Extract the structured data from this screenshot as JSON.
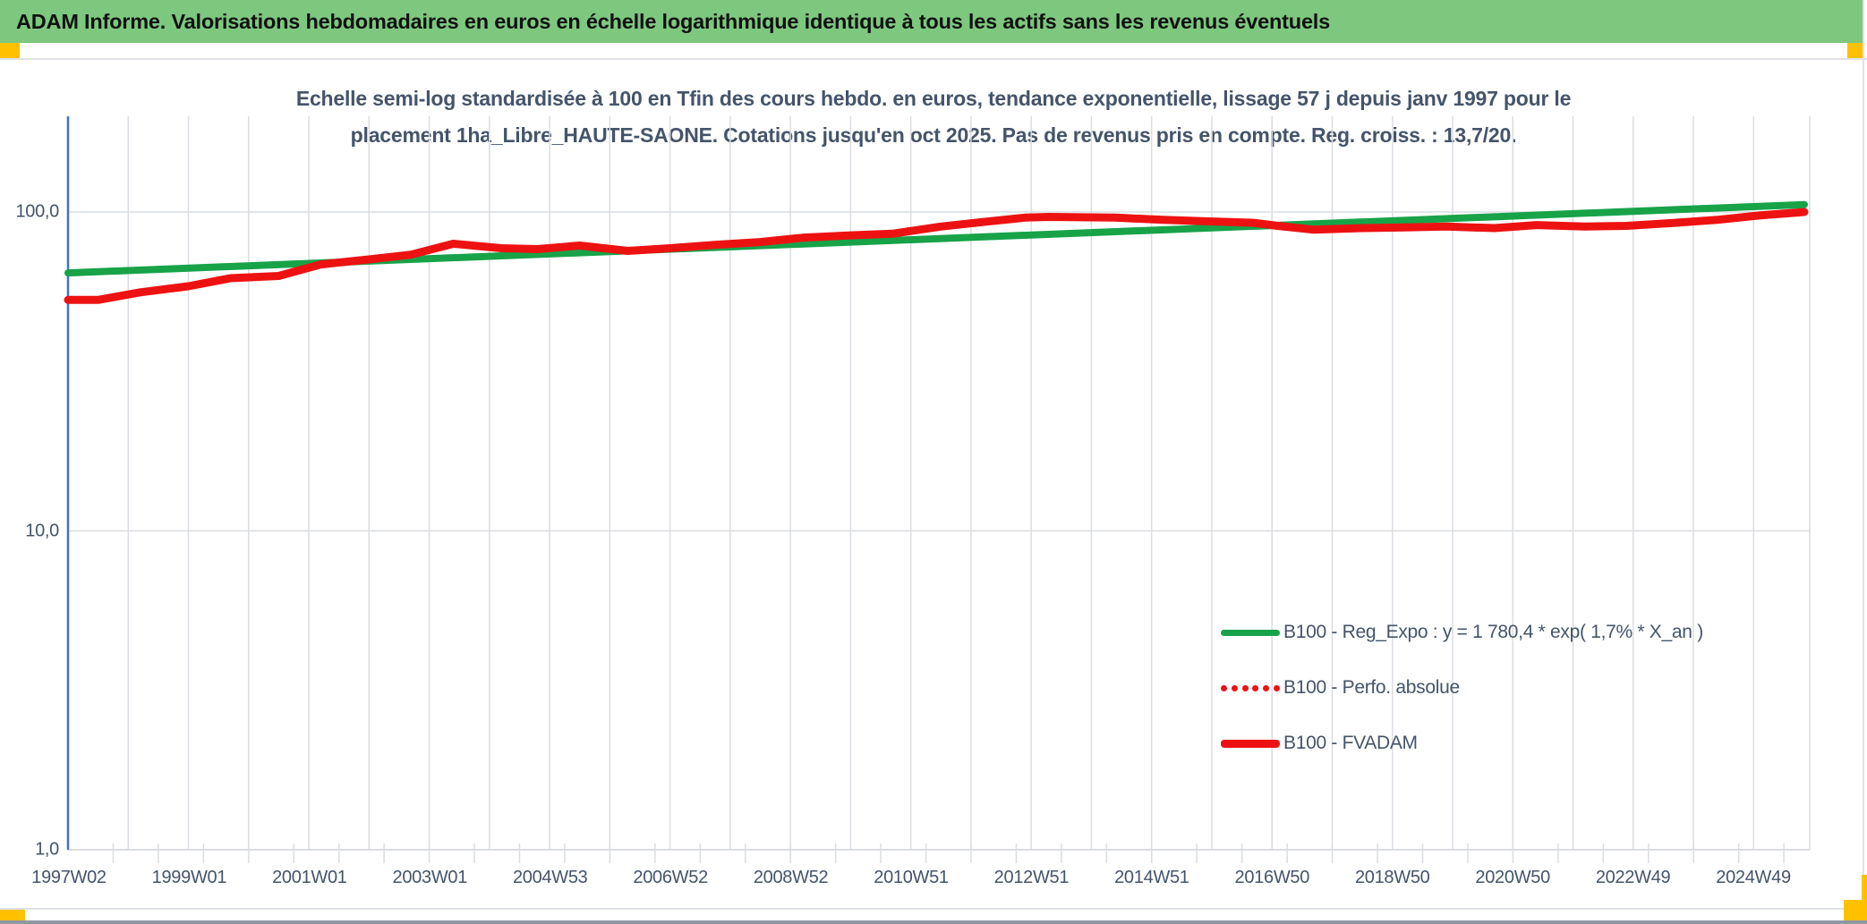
{
  "app": {
    "title": "ADAM Informe. Valorisations hebdomadaires en euros en échelle logarithmique identique à tous les actifs sans les revenus éventuels"
  },
  "chart": {
    "title_line1": "Echelle semi-log standardisée à 100 en Tfin des cours hebdo. en euros, tendance exponentielle, lissage 57 j depuis janv 1997 pour le",
    "title_line2": "placement 1ha_Libre_HAUTE-SAONE. Cotations jusqu'en oct 2025. Pas de revenus pris en compte. Reg. croiss. : 13,7/20."
  },
  "colors": {
    "header_bg": "#7dc87e",
    "accent_orange": "#ffc000",
    "series_green": "#18a349",
    "series_red": "#ed1212",
    "text_dark": "#44546a",
    "gridline": "#dadde2",
    "axis_blue": "#4472c4"
  },
  "chart_data": {
    "type": "line",
    "y_scale": "log10",
    "title": "Echelle semi-log standardisée à 100 en Tfin des cours hebdo. en euros, tendance exponentielle, lissage 57 j depuis janv 1997 pour le placement 1ha_Libre_HAUTE-SAONE. Cotations jusqu'en oct 2025. Pas de revenus pris en compte. Reg. croiss. : 13,7/20.",
    "x_unit": "years_since_1997W02",
    "x_max": 28.85,
    "ylim": [
      1,
      200
    ],
    "grid": "on",
    "legend_position": "inside-right-bottom",
    "y_ticks": [
      {
        "label": "100,0",
        "value": 100
      },
      {
        "label": "10,0",
        "value": 10
      },
      {
        "label": "1,0",
        "value": 1
      }
    ],
    "x_tick_labels": [
      "1997W02",
      "1999W01",
      "2001W01",
      "2003W01",
      "2004W53",
      "2006W52",
      "2008W52",
      "2010W51",
      "2012W51",
      "2014W51",
      "2016W50",
      "2018W50",
      "2020W50",
      "2022W49",
      "2024W49"
    ],
    "series": [
      {
        "name": "B100 - Reg_Expo : y = 1 780,4 * exp( 1,7% *  X_an )",
        "style": "solid",
        "color_key": "series_green",
        "width": 8,
        "points": [
          [
            0,
            64.4
          ],
          [
            28.85,
            105.5
          ]
        ]
      },
      {
        "name": "B100 - Perfo. absolue",
        "style": "dotted",
        "color_key": "series_red",
        "width": 8,
        "same_points_as": "B100 - FVADAM",
        "note": "coincides exactly with B100 - FVADAM, hidden beneath it"
      },
      {
        "name": "B100 - FVADAM",
        "style": "solid",
        "color_key": "series_red",
        "width": 9,
        "points": [
          [
            0,
            53
          ],
          [
            0.5,
            53
          ],
          [
            1.2,
            56
          ],
          [
            2,
            58.5
          ],
          [
            2.7,
            62
          ],
          [
            3.5,
            63
          ],
          [
            4.2,
            68.5
          ],
          [
            5,
            71
          ],
          [
            5.7,
            73.5
          ],
          [
            6.4,
            79.5
          ],
          [
            7.2,
            77
          ],
          [
            7.8,
            76.5
          ],
          [
            8.5,
            78.5
          ],
          [
            9.3,
            75.5
          ],
          [
            10,
            77
          ],
          [
            10.8,
            79
          ],
          [
            11.5,
            80.5
          ],
          [
            12.2,
            83
          ],
          [
            13,
            84.5
          ],
          [
            13.7,
            85.5
          ],
          [
            14.5,
            90
          ],
          [
            15.2,
            93
          ],
          [
            15.9,
            96
          ],
          [
            16.3,
            96.5
          ],
          [
            17.4,
            96
          ],
          [
            18.2,
            94.5
          ],
          [
            18.9,
            93.5
          ],
          [
            19.7,
            92.5
          ],
          [
            20.1,
            90.5
          ],
          [
            20.7,
            88
          ],
          [
            21.5,
            89
          ],
          [
            22.2,
            89.5
          ],
          [
            22.9,
            90
          ],
          [
            23.7,
            89
          ],
          [
            24.4,
            91
          ],
          [
            25.2,
            90
          ],
          [
            25.9,
            90.5
          ],
          [
            26.7,
            92.5
          ],
          [
            27.4,
            94.5
          ],
          [
            28.1,
            97.5
          ],
          [
            28.85,
            100
          ]
        ]
      }
    ]
  }
}
